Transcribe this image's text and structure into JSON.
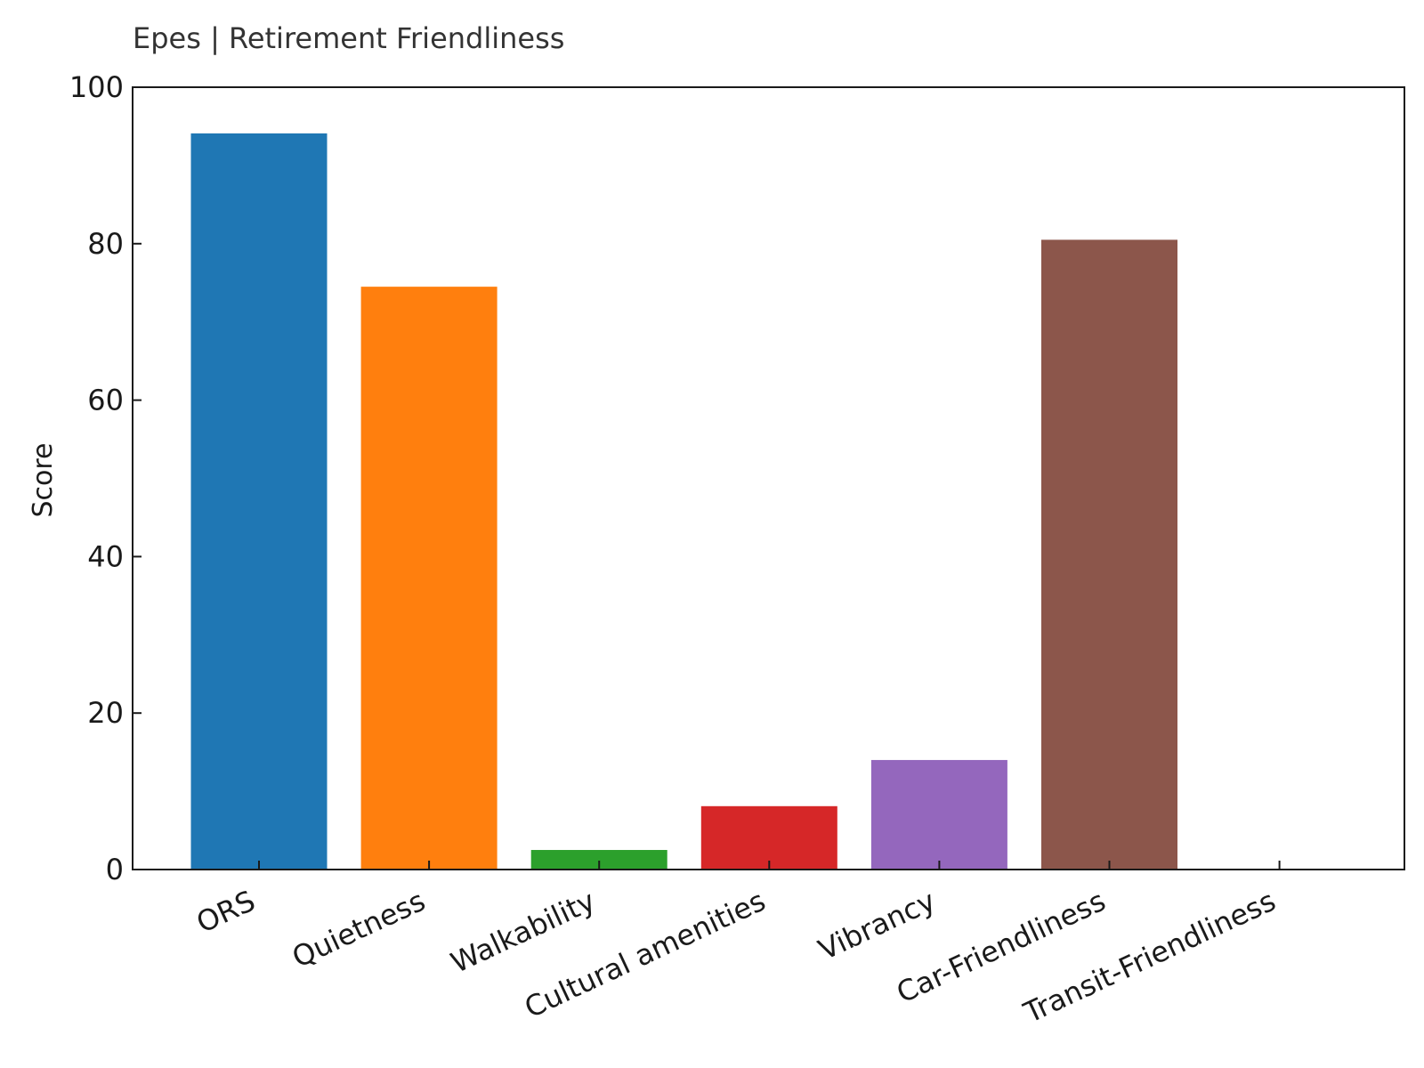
{
  "chart_data": {
    "type": "bar",
    "title": "Epes | Retirement Friendliness",
    "xlabel": "",
    "ylabel": "Score",
    "categories": [
      "ORS",
      "Quietness",
      "Walkability",
      "Cultural amenities",
      "Vibrancy",
      "Car-Friendliness",
      "Transit-Friendliness"
    ],
    "values": [
      94.1,
      74.5,
      2.5,
      8.1,
      14.0,
      80.5,
      0
    ],
    "colors": [
      "#1f77b4",
      "#ff7f0e",
      "#2ca02c",
      "#d62728",
      "#9467bd",
      "#8c564b",
      "#e377c2"
    ],
    "ylim": [
      0,
      100
    ],
    "yticks": [
      0,
      20,
      40,
      60,
      80,
      100
    ],
    "grid": false,
    "legend": "none"
  }
}
